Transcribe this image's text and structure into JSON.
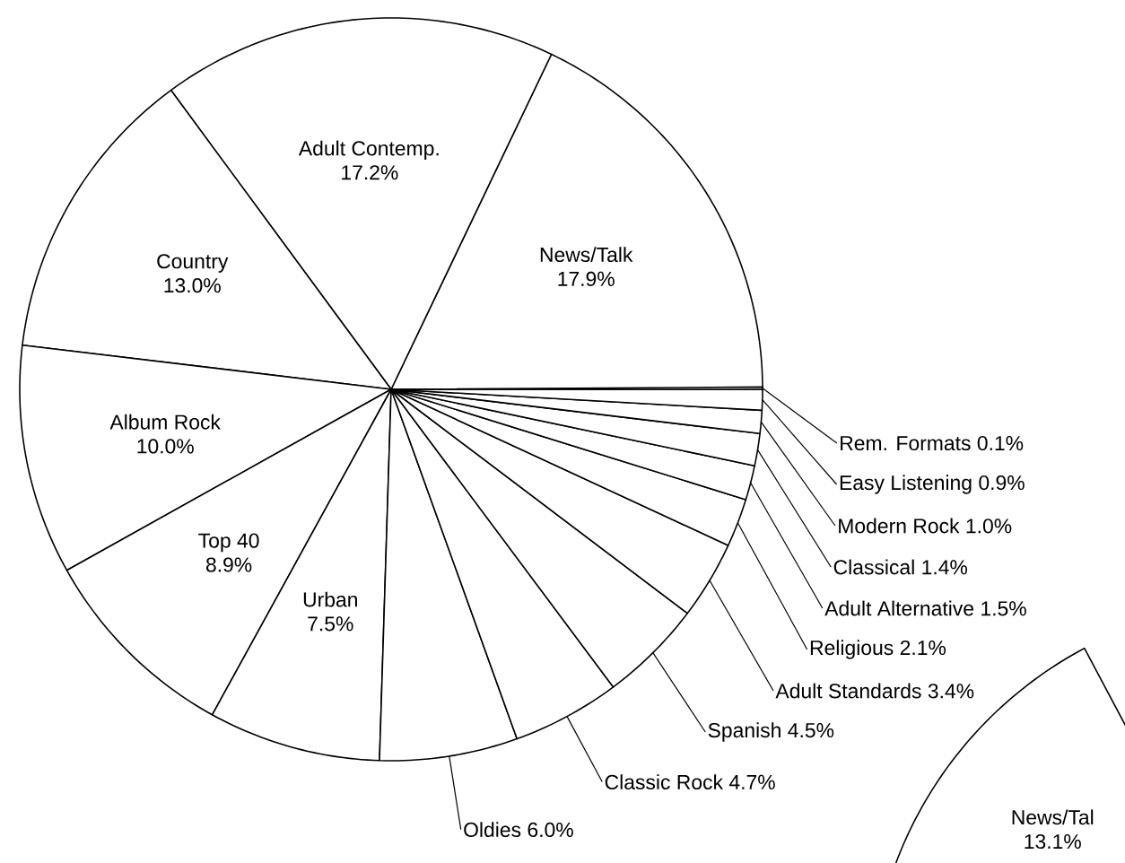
{
  "chart_data": [
    {
      "type": "pie",
      "categories": [
        "News/Talk",
        "Adult Contemp.",
        "Country",
        "Album Rock",
        "Top 40",
        "Urban",
        "Oldies",
        "Classic Rock",
        "Spanish",
        "Adult Standards",
        "Religious",
        "Adult Alternative",
        "Classical",
        "Modern Rock",
        "Easy Listening",
        "Rem. Formats"
      ],
      "values": [
        17.9,
        17.2,
        13.0,
        10.0,
        8.9,
        7.5,
        6.0,
        4.7,
        4.5,
        3.4,
        2.1,
        1.5,
        1.4,
        1.0,
        0.9,
        0.1
      ],
      "value_labels": [
        "17.9%",
        "17.2%",
        "13.0%",
        "10.0%",
        "8.9%",
        "7.5%",
        "6.0%",
        "4.7%",
        "4.5%",
        "3.4%",
        "2.1%",
        "1.5%",
        "1.4%",
        "1.0%",
        "0.9%",
        "0.1%"
      ]
    },
    {
      "type": "pie",
      "categories": [
        "News/Tal"
      ],
      "values": [
        13.1
      ],
      "value_labels": [
        "13.1%"
      ]
    }
  ]
}
